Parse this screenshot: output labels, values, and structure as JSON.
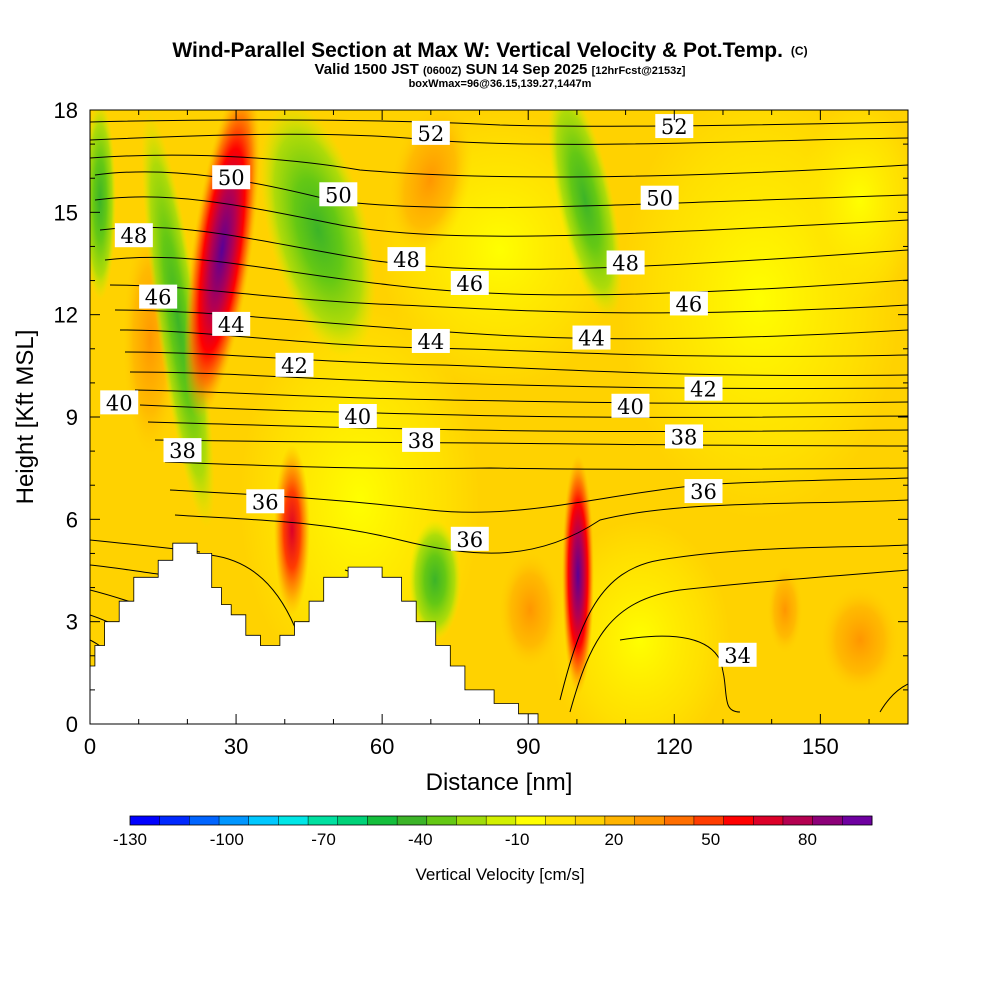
{
  "chart_data": {
    "type": "heatmap",
    "title": "Wind-Parallel Section at Max W: Vertical Velocity & Pot.Temp.",
    "title_mark": "(C)",
    "subtitle_parts": [
      "Valid 1500 JST ",
      "(0600Z)",
      " SUN 14 Sep 2025 ",
      "[12hrFcst@2153z]"
    ],
    "subtitle2": "boxWmax=96@36.15,139.27,1447m",
    "xlabel": "Distance [nm]",
    "ylabel": "Height [Kft MSL]",
    "xlim": [
      0,
      168
    ],
    "ylim": [
      0,
      18
    ],
    "xticks": [
      0,
      30,
      60,
      90,
      120,
      150
    ],
    "yticks": [
      0,
      3,
      6,
      9,
      12,
      15,
      18
    ],
    "colorbar": {
      "label": "Vertical Velocity [cm/s]",
      "ticks": [
        -130,
        -100,
        -70,
        -40,
        -10,
        20,
        50,
        80
      ],
      "range": [
        -130,
        100
      ],
      "step": 10,
      "colors": [
        "#0000ff",
        "#0028ff",
        "#0064ff",
        "#0096ff",
        "#00c8ff",
        "#00e6e6",
        "#00e0a0",
        "#00d278",
        "#14be3c",
        "#3cb428",
        "#64c814",
        "#a0dc0a",
        "#d2f000",
        "#ffff00",
        "#ffe600",
        "#ffd200",
        "#ffb400",
        "#ff9600",
        "#ff6e00",
        "#ff3c00",
        "#ff0000",
        "#dc0028",
        "#b40050",
        "#8c0078",
        "#6e00a0"
      ]
    },
    "terrain_profile_kft": [
      [
        0,
        0
      ],
      [
        0,
        1.7
      ],
      [
        1,
        1.7
      ],
      [
        1,
        2.3
      ],
      [
        3,
        2.3
      ],
      [
        3,
        3.0
      ],
      [
        6,
        3.0
      ],
      [
        6,
        3.6
      ],
      [
        9,
        3.6
      ],
      [
        9,
        4.3
      ],
      [
        14,
        4.3
      ],
      [
        14,
        4.8
      ],
      [
        17,
        4.8
      ],
      [
        17,
        5.3
      ],
      [
        22,
        5.3
      ],
      [
        22,
        5.0
      ],
      [
        25,
        5.0
      ],
      [
        25,
        4.0
      ],
      [
        27,
        4.0
      ],
      [
        27,
        3.5
      ],
      [
        29,
        3.5
      ],
      [
        29,
        3.2
      ],
      [
        32,
        3.2
      ],
      [
        32,
        2.6
      ],
      [
        35,
        2.6
      ],
      [
        35,
        2.3
      ],
      [
        39,
        2.3
      ],
      [
        39,
        2.6
      ],
      [
        42,
        2.6
      ],
      [
        42,
        3.0
      ],
      [
        45,
        3.0
      ],
      [
        45,
        3.6
      ],
      [
        48,
        3.6
      ],
      [
        48,
        4.3
      ],
      [
        53,
        4.3
      ],
      [
        53,
        4.6
      ],
      [
        60,
        4.6
      ],
      [
        60,
        4.3
      ],
      [
        64,
        4.3
      ],
      [
        64,
        3.6
      ],
      [
        67,
        3.6
      ],
      [
        67,
        3.0
      ],
      [
        71,
        3.0
      ],
      [
        71,
        2.3
      ],
      [
        74,
        2.3
      ],
      [
        74,
        1.7
      ],
      [
        77,
        1.7
      ],
      [
        77,
        1.0
      ],
      [
        83,
        1.0
      ],
      [
        83,
        0.6
      ],
      [
        88,
        0.6
      ],
      [
        88,
        0.3
      ],
      [
        92,
        0.3
      ],
      [
        92,
        0
      ]
    ],
    "vv_features": [
      {
        "x": 26,
        "y": 12,
        "value": 95
      },
      {
        "x": 42,
        "y": 5.5,
        "value": 60
      },
      {
        "x": 100,
        "y": 4,
        "value": 96
      },
      {
        "x": 20,
        "y": 12,
        "value": -35
      },
      {
        "x": 50,
        "y": 14,
        "value": -40
      },
      {
        "x": 105,
        "y": 15,
        "value": -30
      },
      {
        "x": 70,
        "y": 4,
        "value": -35
      },
      {
        "x": 70,
        "y": 16,
        "value": 30
      },
      {
        "x": 158,
        "y": 3,
        "value": 20
      }
    ],
    "theta_contour_labels": [
      {
        "text": "52",
        "x": 70,
        "y": 17.3
      },
      {
        "text": "52",
        "x": 120,
        "y": 17.5
      },
      {
        "text": "50",
        "x": 29,
        "y": 16.0
      },
      {
        "text": "50",
        "x": 51,
        "y": 15.5
      },
      {
        "text": "50",
        "x": 117,
        "y": 15.4
      },
      {
        "text": "48",
        "x": 9,
        "y": 14.3
      },
      {
        "text": "48",
        "x": 65,
        "y": 13.6
      },
      {
        "text": "48",
        "x": 110,
        "y": 13.5
      },
      {
        "text": "46",
        "x": 14,
        "y": 12.5
      },
      {
        "text": "46",
        "x": 78,
        "y": 12.9
      },
      {
        "text": "46",
        "x": 123,
        "y": 12.3
      },
      {
        "text": "44",
        "x": 29,
        "y": 11.7
      },
      {
        "text": "44",
        "x": 70,
        "y": 11.2
      },
      {
        "text": "44",
        "x": 103,
        "y": 11.3
      },
      {
        "text": "42",
        "x": 42,
        "y": 10.5
      },
      {
        "text": "42",
        "x": 126,
        "y": 9.8
      },
      {
        "text": "40",
        "x": 6,
        "y": 9.4
      },
      {
        "text": "40",
        "x": 55,
        "y": 9.0
      },
      {
        "text": "40",
        "x": 111,
        "y": 9.3
      },
      {
        "text": "38",
        "x": 19,
        "y": 8.0
      },
      {
        "text": "38",
        "x": 68,
        "y": 8.3
      },
      {
        "text": "38",
        "x": 122,
        "y": 8.4
      },
      {
        "text": "36",
        "x": 36,
        "y": 6.5
      },
      {
        "text": "36",
        "x": 78,
        "y": 5.4
      },
      {
        "text": "36",
        "x": 126,
        "y": 6.8
      },
      {
        "text": "34",
        "x": 133,
        "y": 2.0
      }
    ]
  }
}
